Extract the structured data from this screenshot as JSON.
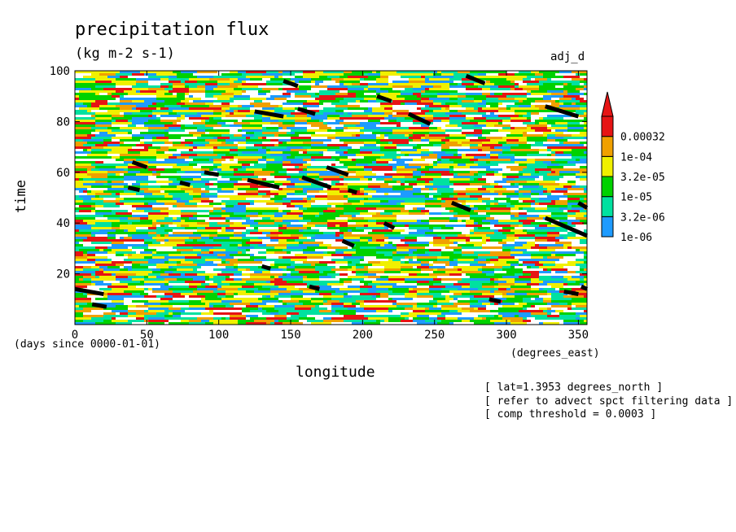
{
  "chart_data": {
    "type": "heatmap",
    "title": "precipitation flux",
    "units": "(kg m-2 s-1)",
    "tag": "adj_d",
    "xlabel": "longitude",
    "ylabel": "time",
    "xunits": "(degrees_east)",
    "yunits": "(days since 0000-01-01)",
    "xlim": [
      0,
      356
    ],
    "ylim": [
      0,
      100
    ],
    "xticks": [
      "0",
      "50",
      "100",
      "150",
      "200",
      "250",
      "300",
      "350"
    ],
    "xtick_values": [
      0,
      50,
      100,
      150,
      200,
      250,
      300,
      350
    ],
    "yticks": [
      "20",
      "40",
      "60",
      "80",
      "100"
    ],
    "ytick_values": [
      20,
      40,
      60,
      80,
      100
    ],
    "colorbar": {
      "levels": [
        "1e-06",
        "3.2e-06",
        "1e-05",
        "3.2e-05",
        "1e-04",
        "0.00032"
      ],
      "colors": [
        "#1e9bff",
        "#00e1a0",
        "#00d200",
        "#f0f000",
        "#f0a000",
        "#e61414"
      ],
      "overflow_color": "#e61414"
    },
    "threshold_segments": [
      {
        "x": [
          0,
          20
        ],
        "y": [
          14,
          12
        ]
      },
      {
        "x": [
          12,
          22
        ],
        "y": [
          8,
          7
        ]
      },
      {
        "x": [
          37,
          45
        ],
        "y": [
          54,
          53
        ]
      },
      {
        "x": [
          40,
          50
        ],
        "y": [
          64,
          62
        ]
      },
      {
        "x": [
          73,
          80
        ],
        "y": [
          56,
          55
        ]
      },
      {
        "x": [
          90,
          100
        ],
        "y": [
          60,
          59
        ]
      },
      {
        "x": [
          125,
          145
        ],
        "y": [
          84,
          82
        ]
      },
      {
        "x": [
          120,
          142
        ],
        "y": [
          57,
          54
        ]
      },
      {
        "x": [
          130,
          136
        ],
        "y": [
          23,
          22
        ]
      },
      {
        "x": [
          145,
          155
        ],
        "y": [
          96,
          94
        ]
      },
      {
        "x": [
          155,
          167
        ],
        "y": [
          85,
          83
        ]
      },
      {
        "x": [
          158,
          178
        ],
        "y": [
          58,
          54
        ]
      },
      {
        "x": [
          163,
          170
        ],
        "y": [
          15,
          14
        ]
      },
      {
        "x": [
          175,
          190
        ],
        "y": [
          62,
          59
        ]
      },
      {
        "x": [
          186,
          194
        ],
        "y": [
          33,
          31
        ]
      },
      {
        "x": [
          190,
          196
        ],
        "y": [
          53,
          52
        ]
      },
      {
        "x": [
          210,
          220
        ],
        "y": [
          90,
          88
        ]
      },
      {
        "x": [
          215,
          222
        ],
        "y": [
          40,
          38
        ]
      },
      {
        "x": [
          232,
          247
        ],
        "y": [
          83,
          79
        ]
      },
      {
        "x": [
          262,
          275
        ],
        "y": [
          48,
          45
        ]
      },
      {
        "x": [
          272,
          285
        ],
        "y": [
          98,
          95
        ]
      },
      {
        "x": [
          288,
          296
        ],
        "y": [
          10,
          9
        ]
      },
      {
        "x": [
          327,
          350
        ],
        "y": [
          86,
          82
        ]
      },
      {
        "x": [
          327,
          356
        ],
        "y": [
          42,
          35
        ]
      },
      {
        "x": [
          340,
          350
        ],
        "y": [
          13,
          12
        ]
      },
      {
        "x": [
          350,
          356
        ],
        "y": [
          48,
          46
        ]
      },
      {
        "x": [
          352,
          356
        ],
        "y": [
          15,
          14
        ]
      }
    ]
  },
  "notes": [
    "[ lat=1.3953 degrees_north ]",
    "[ refer to advect spct filtering data ]",
    "[ comp threshold = 0.0003 ]"
  ]
}
